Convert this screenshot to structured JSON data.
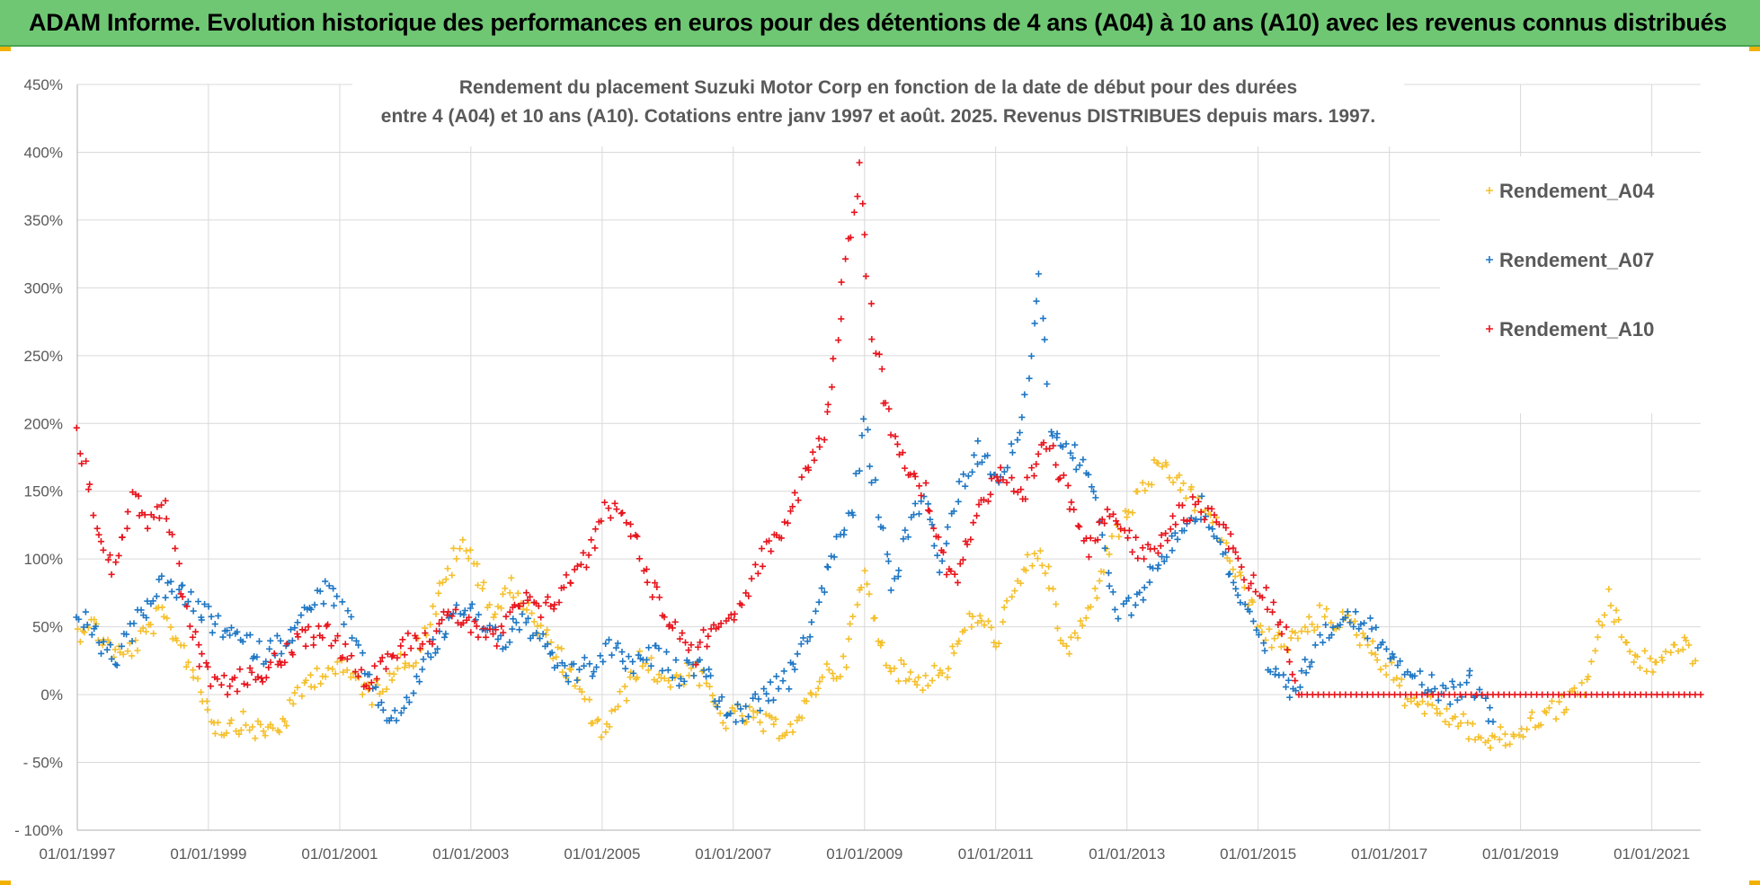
{
  "banner": {
    "title": "ADAM Informe. Evolution historique des performances en euros pour des détentions de 4 ans (A04) à 10 ans (A10) avec les revenus connus distribués"
  },
  "chart_data": {
    "type": "scatter",
    "title_line1": "Rendement du placement Suzuki Motor Corp en fonction de la date de début pour des durées",
    "title_line2": "entre 4 (A04) et 10 ans (A10). Cotations entre janv 1997 et août. 2025. Revenus DISTRIBUES depuis mars. 1997.",
    "xlabel": "",
    "ylabel": "",
    "x_range": [
      "1997-01-01",
      "2021-09-30"
    ],
    "x_ticks": [
      "01/01/1997",
      "01/01/1999",
      "01/01/2001",
      "01/01/2003",
      "01/01/2005",
      "01/01/2007",
      "01/01/2009",
      "01/01/2011",
      "01/01/2013",
      "01/01/2015",
      "01/01/2017",
      "01/01/2019",
      "01/01/2021"
    ],
    "ylim": [
      -100,
      450
    ],
    "y_ticks": [
      "- 100%",
      "- 50%",
      "0%",
      "50%",
      "100%",
      "150%",
      "200%",
      "250%",
      "300%",
      "350%",
      "400%",
      "450%"
    ],
    "grid": true,
    "legend_position": "top-right",
    "marker": "+",
    "series": [
      {
        "name": "Rendement_A04",
        "color": "#f5c02c",
        "points": [
          [
            "1997-01-01",
            45
          ],
          [
            "1997-03-01",
            55
          ],
          [
            "1997-06-01",
            40
          ],
          [
            "1997-09-01",
            28
          ],
          [
            "1998-01-01",
            42
          ],
          [
            "1998-04-01",
            58
          ],
          [
            "1998-07-01",
            45
          ],
          [
            "1998-10-01",
            20
          ],
          [
            "1999-01-01",
            -10
          ],
          [
            "1999-03-01",
            -25
          ],
          [
            "1999-07-01",
            -20
          ],
          [
            "1999-11-01",
            -28
          ],
          [
            "2000-03-01",
            -20
          ],
          [
            "2000-07-01",
            10
          ],
          [
            "2000-11-01",
            20
          ],
          [
            "2001-03-01",
            15
          ],
          [
            "2001-07-01",
            0
          ],
          [
            "2001-11-01",
            20
          ],
          [
            "2002-03-01",
            30
          ],
          [
            "2002-07-01",
            70
          ],
          [
            "2002-11-01",
            110
          ],
          [
            "2003-02-01",
            95
          ],
          [
            "2003-05-01",
            60
          ],
          [
            "2003-09-01",
            80
          ],
          [
            "2004-01-01",
            50
          ],
          [
            "2004-05-01",
            30
          ],
          [
            "2004-09-01",
            0
          ],
          [
            "2005-01-01",
            -28
          ],
          [
            "2005-04-01",
            -10
          ],
          [
            "2005-08-01",
            25
          ],
          [
            "2006-01-01",
            10
          ],
          [
            "2006-06-01",
            20
          ],
          [
            "2006-11-01",
            -18
          ],
          [
            "2007-03-01",
            -15
          ],
          [
            "2007-08-01",
            -25
          ],
          [
            "2008-01-01",
            -22
          ],
          [
            "2008-05-01",
            15
          ],
          [
            "2008-09-01",
            20
          ],
          [
            "2009-01-01",
            90
          ],
          [
            "2009-03-01",
            50
          ],
          [
            "2009-06-01",
            20
          ],
          [
            "2009-11-01",
            10
          ],
          [
            "2010-04-01",
            20
          ],
          [
            "2010-09-01",
            60
          ],
          [
            "2011-01-01",
            40
          ],
          [
            "2011-05-01",
            80
          ],
          [
            "2011-09-01",
            110
          ],
          [
            "2012-02-01",
            30
          ],
          [
            "2012-06-01",
            60
          ],
          [
            "2012-10-01",
            110
          ],
          [
            "2013-02-01",
            140
          ],
          [
            "2013-06-01",
            165
          ],
          [
            "2013-10-01",
            160
          ],
          [
            "2014-02-01",
            140
          ],
          [
            "2014-06-01",
            120
          ],
          [
            "2014-10-01",
            80
          ],
          [
            "2015-03-01",
            40
          ],
          [
            "2015-08-01",
            40
          ],
          [
            "2016-01-01",
            60
          ],
          [
            "2016-06-01",
            50
          ],
          [
            "2016-11-01",
            30
          ],
          [
            "2017-04-01",
            0
          ],
          [
            "2017-09-01",
            -10
          ],
          [
            "2018-02-01",
            -20
          ],
          [
            "2018-07-01",
            -35
          ],
          [
            "2018-12-01",
            -30
          ],
          [
            "2019-05-01",
            -15
          ],
          [
            "2019-10-01",
            -5
          ],
          [
            "2020-01-01",
            10
          ],
          [
            "2020-05-01",
            70
          ],
          [
            "2020-09-01",
            30
          ],
          [
            "2021-02-01",
            20
          ],
          [
            "2021-06-01",
            40
          ],
          [
            "2021-09-01",
            25
          ]
        ]
      },
      {
        "name": "Rendement_A07",
        "color": "#1f77c4",
        "points": [
          [
            "1997-01-01",
            60
          ],
          [
            "1997-04-01",
            45
          ],
          [
            "1997-08-01",
            25
          ],
          [
            "1997-12-01",
            55
          ],
          [
            "1998-04-01",
            80
          ],
          [
            "1998-08-01",
            75
          ],
          [
            "1998-12-01",
            60
          ],
          [
            "1999-03-01",
            50
          ],
          [
            "1999-07-01",
            40
          ],
          [
            "1999-11-01",
            30
          ],
          [
            "2000-03-01",
            40
          ],
          [
            "2000-07-01",
            60
          ],
          [
            "2000-11-01",
            80
          ],
          [
            "2001-03-01",
            50
          ],
          [
            "2001-07-01",
            0
          ],
          [
            "2001-11-01",
            -20
          ],
          [
            "2002-03-01",
            10
          ],
          [
            "2002-07-01",
            40
          ],
          [
            "2002-11-01",
            65
          ],
          [
            "2003-03-01",
            55
          ],
          [
            "2003-07-01",
            40
          ],
          [
            "2003-11-01",
            55
          ],
          [
            "2004-03-01",
            30
          ],
          [
            "2004-07-01",
            15
          ],
          [
            "2004-11-01",
            20
          ],
          [
            "2005-03-01",
            35
          ],
          [
            "2005-07-01",
            20
          ],
          [
            "2005-11-01",
            30
          ],
          [
            "2006-03-01",
            15
          ],
          [
            "2006-07-01",
            25
          ],
          [
            "2006-11-01",
            -10
          ],
          [
            "2007-03-01",
            -15
          ],
          [
            "2007-07-01",
            0
          ],
          [
            "2007-11-01",
            10
          ],
          [
            "2008-03-01",
            50
          ],
          [
            "2008-07-01",
            100
          ],
          [
            "2008-11-01",
            140
          ],
          [
            "2009-01-01",
            200
          ],
          [
            "2009-03-01",
            150
          ],
          [
            "2009-06-01",
            80
          ],
          [
            "2009-09-01",
            120
          ],
          [
            "2009-12-01",
            150
          ],
          [
            "2010-03-01",
            90
          ],
          [
            "2010-06-01",
            150
          ],
          [
            "2010-10-01",
            180
          ],
          [
            "2011-02-01",
            160
          ],
          [
            "2011-06-01",
            200
          ],
          [
            "2011-09-01",
            310
          ],
          [
            "2011-11-01",
            200
          ],
          [
            "2012-03-01",
            180
          ],
          [
            "2012-07-01",
            150
          ],
          [
            "2012-11-01",
            60
          ],
          [
            "2013-03-01",
            70
          ],
          [
            "2013-07-01",
            100
          ],
          [
            "2013-11-01",
            120
          ],
          [
            "2014-03-01",
            140
          ],
          [
            "2014-07-01",
            100
          ],
          [
            "2014-11-01",
            60
          ],
          [
            "2015-03-01",
            20
          ],
          [
            "2015-07-01",
            0
          ],
          [
            "2015-11-01",
            30
          ],
          [
            "2016-04-01",
            60
          ],
          [
            "2016-09-01",
            50
          ],
          [
            "2017-02-01",
            30
          ],
          [
            "2017-07-01",
            10
          ],
          [
            "2017-12-01",
            0
          ],
          [
            "2018-04-01",
            10
          ],
          [
            "2018-08-01",
            -20
          ]
        ]
      },
      {
        "name": "Rendement_A10",
        "color": "#e8141c",
        "points": [
          [
            "1997-01-01",
            190
          ],
          [
            "1997-02-15",
            170
          ],
          [
            "1997-05-01",
            120
          ],
          [
            "1997-08-01",
            90
          ],
          [
            "1997-11-01",
            150
          ],
          [
            "1998-02-01",
            130
          ],
          [
            "1998-05-01",
            140
          ],
          [
            "1998-08-01",
            80
          ],
          [
            "1998-11-01",
            30
          ],
          [
            "1999-02-01",
            5
          ],
          [
            "1999-06-01",
            10
          ],
          [
            "1999-10-01",
            15
          ],
          [
            "2000-02-01",
            25
          ],
          [
            "2000-06-01",
            40
          ],
          [
            "2000-10-01",
            50
          ],
          [
            "2001-02-01",
            30
          ],
          [
            "2001-06-01",
            10
          ],
          [
            "2001-10-01",
            30
          ],
          [
            "2002-02-01",
            40
          ],
          [
            "2002-06-01",
            45
          ],
          [
            "2002-10-01",
            60
          ],
          [
            "2003-02-01",
            50
          ],
          [
            "2003-06-01",
            40
          ],
          [
            "2003-10-01",
            70
          ],
          [
            "2004-02-01",
            60
          ],
          [
            "2004-06-01",
            80
          ],
          [
            "2004-10-01",
            100
          ],
          [
            "2005-02-01",
            140
          ],
          [
            "2005-06-01",
            130
          ],
          [
            "2005-10-01",
            80
          ],
          [
            "2006-02-01",
            50
          ],
          [
            "2006-06-01",
            30
          ],
          [
            "2006-10-01",
            55
          ],
          [
            "2007-02-01",
            60
          ],
          [
            "2007-06-01",
            100
          ],
          [
            "2007-10-01",
            120
          ],
          [
            "2008-02-01",
            160
          ],
          [
            "2008-06-01",
            200
          ],
          [
            "2008-09-01",
            300
          ],
          [
            "2008-12-01",
            390
          ],
          [
            "2009-02-01",
            280
          ],
          [
            "2009-05-01",
            210
          ],
          [
            "2009-09-01",
            170
          ],
          [
            "2009-12-01",
            150
          ],
          [
            "2010-03-01",
            100
          ],
          [
            "2010-06-01",
            90
          ],
          [
            "2010-10-01",
            140
          ],
          [
            "2011-02-01",
            160
          ],
          [
            "2011-06-01",
            140
          ],
          [
            "2011-10-01",
            190
          ],
          [
            "2012-02-01",
            150
          ],
          [
            "2012-06-01",
            110
          ],
          [
            "2012-10-01",
            140
          ],
          [
            "2013-02-01",
            110
          ],
          [
            "2013-06-01",
            100
          ],
          [
            "2013-10-01",
            130
          ],
          [
            "2014-02-01",
            140
          ],
          [
            "2014-06-01",
            130
          ],
          [
            "2014-10-01",
            90
          ],
          [
            "2015-03-01",
            70
          ],
          [
            "2015-06-01",
            45
          ],
          [
            "2015-09-01",
            0
          ],
          [
            "2016-06-01",
            0
          ],
          [
            "2017-06-01",
            0
          ],
          [
            "2018-06-01",
            0
          ],
          [
            "2019-06-01",
            0
          ],
          [
            "2020-06-01",
            0
          ],
          [
            "2021-09-30",
            0
          ]
        ]
      }
    ]
  }
}
